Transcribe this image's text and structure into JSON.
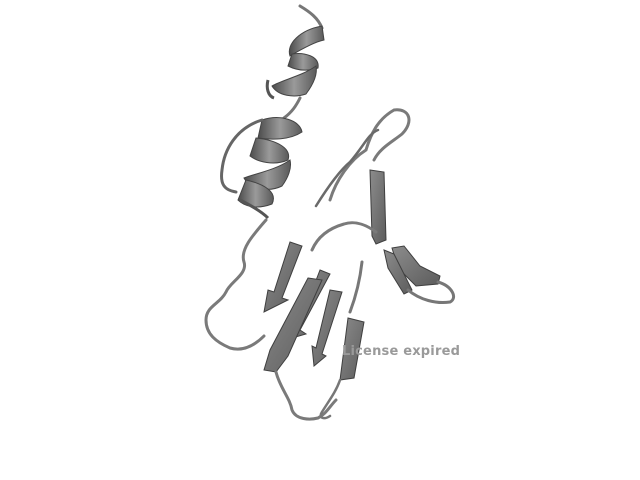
{
  "viewer": {
    "watermark_text": "License expired",
    "background_color": "#ffffff",
    "ribbon_color": "#6e6e6e",
    "ribbon_highlight": "#a6a6a6",
    "ribbon_shadow": "#4a4a4a"
  },
  "molecule": {
    "representation": "cartoon",
    "render_style": "grayscale",
    "secondary_structure": [
      "alpha-helix",
      "alpha-helix",
      "beta-sheet",
      "beta-hairpin",
      "loops"
    ]
  }
}
